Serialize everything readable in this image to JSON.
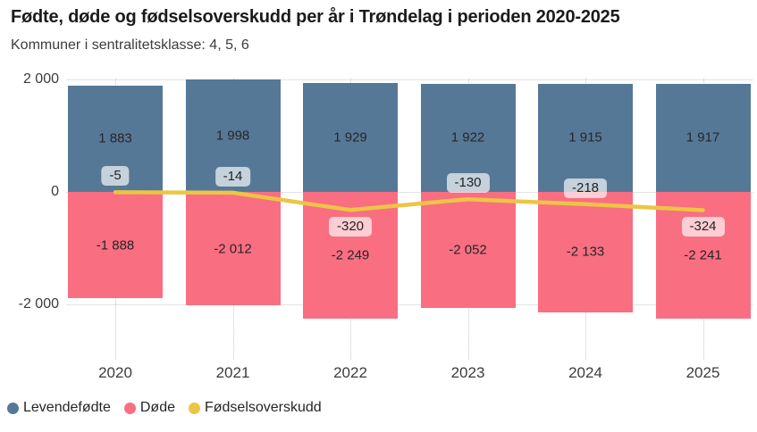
{
  "header": {
    "title": "Fødte, døde og fødselsoverskudd per år i Trøndelag i perioden 2020-2025",
    "subtitle": "Kommuner i sentralitetsklasse: 4, 5, 6"
  },
  "chart_data": {
    "type": "combo-bar-line",
    "categories": [
      "2020",
      "2021",
      "2022",
      "2023",
      "2024",
      "2025"
    ],
    "series": [
      {
        "key": "levendefodte",
        "name": "Levendefødte",
        "type": "bar",
        "color": "#567897",
        "values": [
          1883,
          1998,
          1929,
          1922,
          1915,
          1917
        ],
        "labels": [
          "1 883",
          "1 998",
          "1 929",
          "1 922",
          "1 915",
          "1 917"
        ]
      },
      {
        "key": "dode",
        "name": "Døde",
        "type": "bar",
        "color": "#f96e81",
        "values": [
          -1888,
          -2012,
          -2249,
          -2052,
          -2133,
          -2241
        ],
        "labels": [
          "-1 888",
          "-2 012",
          "-2 249",
          "-2 052",
          "-2 133",
          "-2 241"
        ]
      },
      {
        "key": "fodselsoverskudd",
        "name": "Fødselsoverskudd",
        "type": "line",
        "color": "#ecc544",
        "values": [
          -5,
          -14,
          -320,
          -130,
          -218,
          -324
        ],
        "labels": [
          "-5",
          "-14",
          "-320",
          "-130",
          "-218",
          "-324"
        ],
        "label_placement": [
          "above",
          "above",
          "below",
          "above",
          "above",
          "below"
        ]
      }
    ],
    "y_axis": {
      "ticks": [
        {
          "value": 2000,
          "label": "2 000"
        },
        {
          "value": 0,
          "label": "0"
        },
        {
          "value": -2000,
          "label": "-2 000"
        }
      ],
      "range_shown": [
        -2000,
        2000
      ]
    },
    "grid": true,
    "legend_position": "bottom-left",
    "colors": {
      "gridline": "#e3e3e3",
      "category_guide": "#c8c8c8",
      "background": "#ffffff"
    }
  }
}
